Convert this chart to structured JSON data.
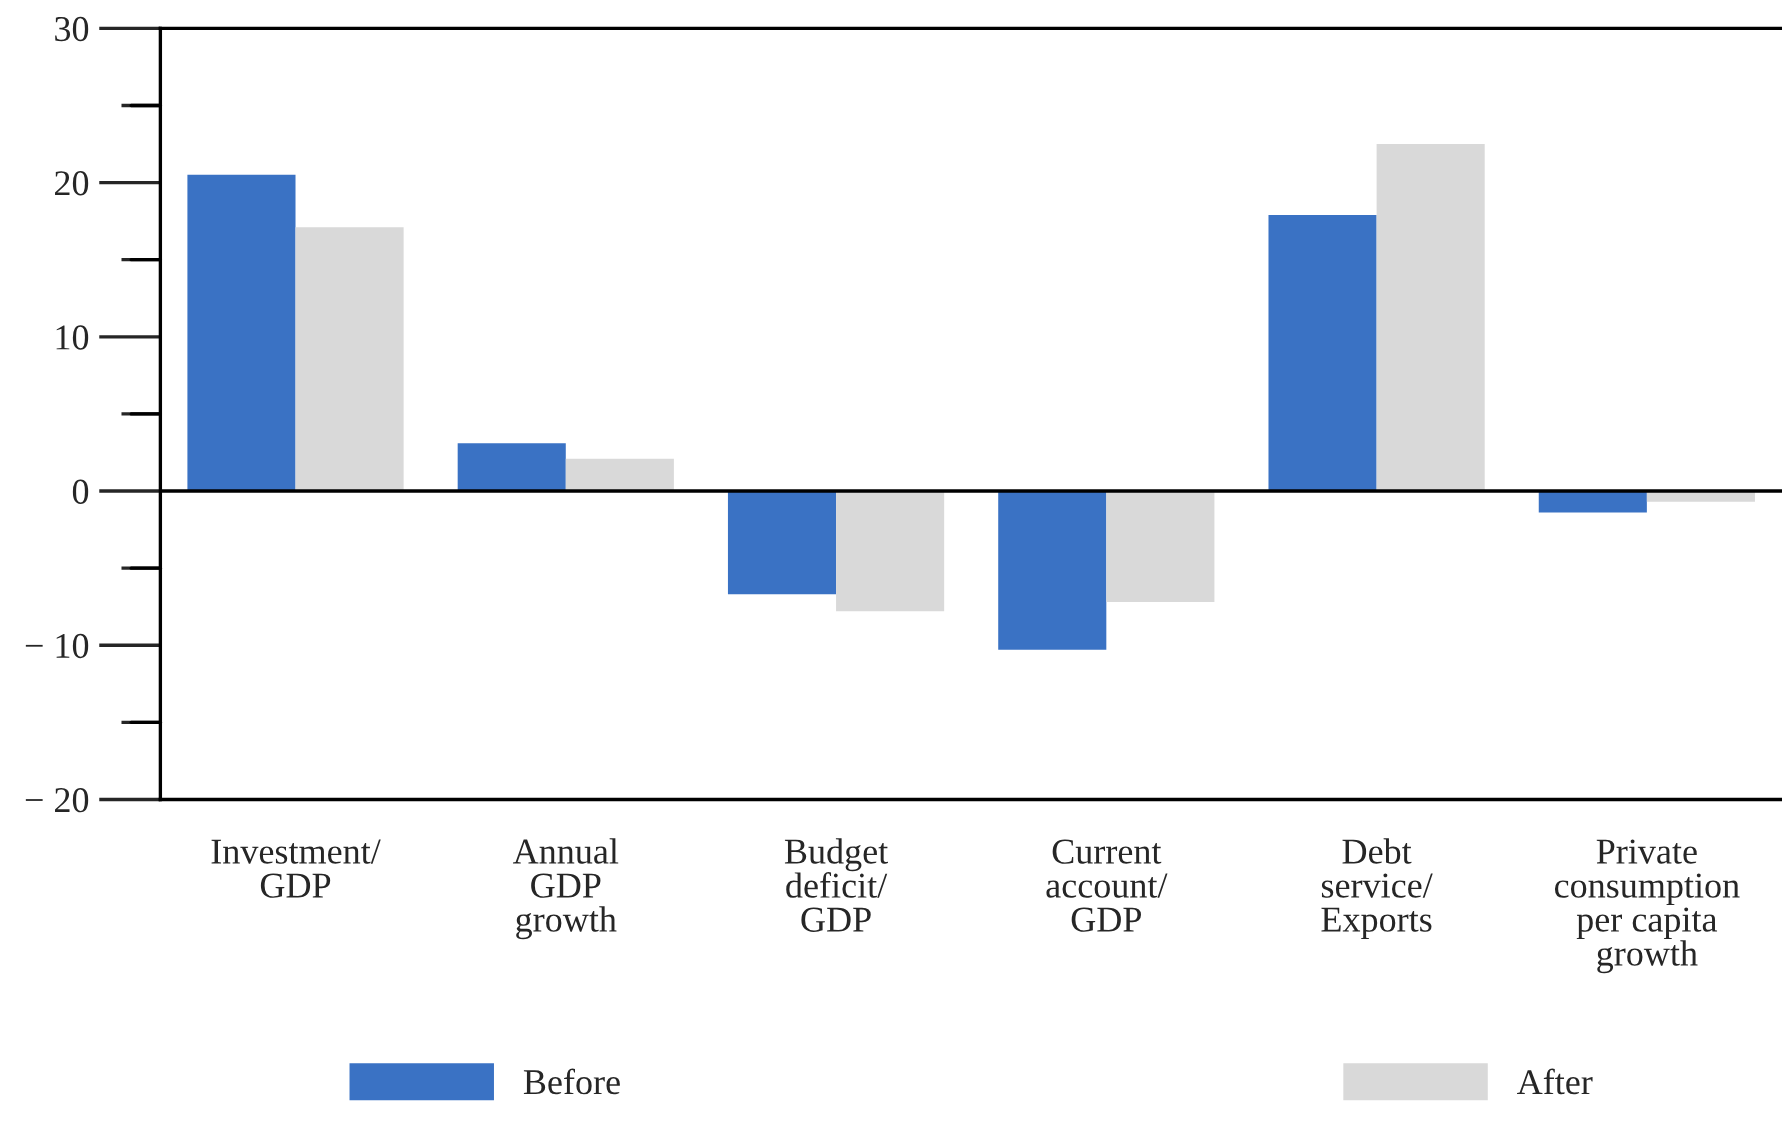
{
  "chart_data": {
    "type": "bar",
    "categories": [
      "Investment/\nGDP",
      "Annual\nGDP\ngrowth",
      "Budget\ndeficit/\nGDP",
      "Current\naccount/\nGDP",
      "Debt\nservice/\nExports",
      "Private\nconsumption\nper capita\ngrowth"
    ],
    "series": [
      {
        "name": "Before",
        "color": "#3a72c4",
        "values": [
          20.5,
          3.1,
          -6.7,
          -10.3,
          17.9,
          -1.4
        ]
      },
      {
        "name": "After",
        "color": "#d9d9d9",
        "values": [
          17.1,
          2.1,
          -7.8,
          -7.2,
          22.5,
          -0.7
        ]
      }
    ],
    "ylim": [
      -20,
      30
    ],
    "yticks": [
      -20,
      {
        "value": -15,
        "label": null
      },
      {
        "value": -10,
        "label": "− 10"
      },
      {
        "value": -5,
        "label": null
      },
      0,
      {
        "value": 5,
        "label": null
      },
      10,
      {
        "value": 15,
        "label": null
      },
      20,
      {
        "value": 25,
        "label": null
      },
      30
    ],
    "ref_lines": [
      {
        "axis": "y",
        "value": 0,
        "color": "#000000"
      }
    ],
    "grid": false,
    "legend": "bottom"
  }
}
